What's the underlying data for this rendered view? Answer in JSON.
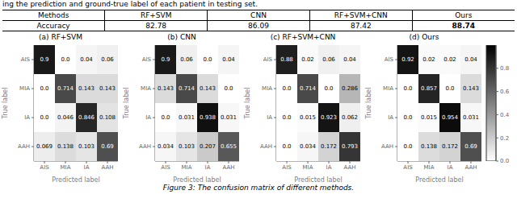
{
  "top_text": "ing the prediction and ground-true label of each patient in testing set.",
  "table": {
    "headers": [
      "Methods",
      "RF+SVM",
      "CNN",
      "RF+SVM+CNN",
      "Ours"
    ],
    "row_label": "Accuracy",
    "values": [
      "82.78",
      "86.09",
      "87.42",
      "88.74"
    ]
  },
  "caption": "Figure 3: The confusion matrix of different methods.",
  "colorbar": {
    "range": [
      0,
      1
    ],
    "ticks": [
      {
        "value": 0,
        "label": "0.0"
      },
      0.2,
      0.4,
      0.6,
      0.8
    ]
  },
  "chart_data": [
    {
      "type": "heatmap",
      "title": "(a) RF+SVM",
      "x_label": "Predicted label",
      "y_label": "True label",
      "categories": [
        "AIS",
        "MIA",
        "IA",
        "AAH"
      ],
      "y_categories": [
        "AIS",
        "MIA",
        "IA",
        "AAH"
      ],
      "values": [
        [
          0.9,
          0.0,
          0.04,
          0.06
        ],
        [
          0.0,
          0.714,
          0.143,
          0.143
        ],
        [
          0.0,
          0.046,
          0.846,
          0.108
        ],
        [
          0.069,
          0.138,
          0.103,
          0.69
        ]
      ],
      "value_labels": [
        [
          "0.9",
          "0.0",
          "0.04",
          "0.06"
        ],
        [
          "0.0",
          "0.714",
          "0.143",
          "0.143"
        ],
        [
          "0.0",
          "0.046",
          "0.846",
          "0.108"
        ],
        [
          "0.069",
          "0.138",
          "0.103",
          "0.69"
        ]
      ],
      "data_labels": true
    },
    {
      "type": "heatmap",
      "title": "(b) CNN",
      "x_label": "Predicted label",
      "y_label": "True label",
      "categories": [
        "AIS",
        "MIA",
        "IA",
        "AAH"
      ],
      "y_categories": [
        "AIS",
        "MIA",
        "IA",
        "AAH"
      ],
      "values": [
        [
          0.9,
          0.06,
          0.0,
          0.04
        ],
        [
          0.143,
          0.714,
          0.143,
          0.0
        ],
        [
          0.0,
          0.031,
          0.938,
          0.031
        ],
        [
          0.034,
          0.103,
          0.207,
          0.655
        ]
      ],
      "value_labels": [
        [
          "0.9",
          "0.06",
          "0.0",
          "0.04"
        ],
        [
          "0.143",
          "0.714",
          "0.143",
          "0.0"
        ],
        [
          "0.0",
          "0.031",
          "0.938",
          "0.031"
        ],
        [
          "0.034",
          "0.103",
          "0.207",
          "0.655"
        ]
      ],
      "data_labels": true
    },
    {
      "type": "heatmap",
      "title": "(c) RF+SVM+CNN",
      "x_label": "Predicted label",
      "y_label": "True label",
      "categories": [
        "AIS",
        "MIA",
        "IA",
        "AAH"
      ],
      "y_categories": [
        "AIS",
        "MIA",
        "IA",
        "AAH"
      ],
      "values": [
        [
          0.88,
          0.02,
          0.06,
          0.04
        ],
        [
          0.0,
          0.714,
          0.0,
          0.286
        ],
        [
          0.0,
          0.015,
          0.923,
          0.062
        ],
        [
          0.0,
          0.034,
          0.172,
          0.793
        ]
      ],
      "value_labels": [
        [
          "0.88",
          "0.02",
          "0.06",
          "0.04"
        ],
        [
          "0.0",
          "0.714",
          "0.0",
          "0.286"
        ],
        [
          "0.0",
          "0.015",
          "0.923",
          "0.062"
        ],
        [
          "0.0",
          "0.034",
          "0.172",
          "0.793"
        ]
      ],
      "data_labels": true
    },
    {
      "type": "heatmap",
      "title": "(d) Ours",
      "x_label": "Predicted label",
      "y_label": "True label",
      "categories": [
        "AIS",
        "MIA",
        "IA",
        "AAH"
      ],
      "y_categories": [
        "AIS",
        "MIA",
        "IA",
        "AAH"
      ],
      "values": [
        [
          0.92,
          0.02,
          0.02,
          0.04
        ],
        [
          0.0,
          0.857,
          0.0,
          0.143
        ],
        [
          0.0,
          0.015,
          0.954,
          0.031
        ],
        [
          0.0,
          0.138,
          0.172,
          0.69
        ]
      ],
      "value_labels": [
        [
          "0.92",
          "0.02",
          "0.02",
          "0.04"
        ],
        [
          "0.0",
          "0.857",
          "0.0",
          "0.143"
        ],
        [
          "0.0",
          "0.015",
          "0.954",
          "0.031"
        ],
        [
          "0.0",
          "0.138",
          "0.172",
          "0.69"
        ]
      ],
      "data_labels": true
    }
  ]
}
